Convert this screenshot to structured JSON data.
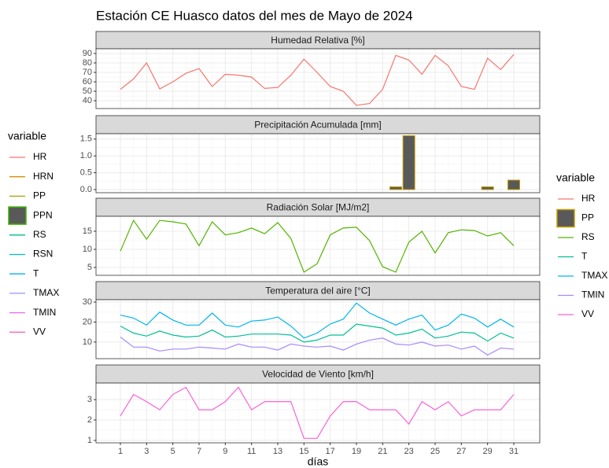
{
  "title": "Estación CE Huasco datos del mes de Mayo de 2024",
  "x_label": "días",
  "legends": [
    {
      "title": "variable",
      "entries": [
        {
          "name": "HR",
          "color": "#F8766D"
        },
        {
          "name": "HRN",
          "color": "#D89000"
        },
        {
          "name": "PP",
          "color": "#A3A500"
        },
        {
          "name": "PPN",
          "color": "#39B600",
          "key": "box"
        },
        {
          "name": "RS",
          "color": "#00BF7D"
        },
        {
          "name": "RSN",
          "color": "#00BFC4"
        },
        {
          "name": "T",
          "color": "#00B0F6"
        },
        {
          "name": "TMAX",
          "color": "#9590FF"
        },
        {
          "name": "TMIN",
          "color": "#E76BF3"
        },
        {
          "name": "VV",
          "color": "#FF62BC"
        }
      ]
    },
    {
      "title": "variable",
      "entries": [
        {
          "name": "HR",
          "color": "#F8766D"
        },
        {
          "name": "PP",
          "color": "#C49A00",
          "key": "box"
        },
        {
          "name": "RS",
          "color": "#53B400"
        },
        {
          "name": "T",
          "color": "#00C094"
        },
        {
          "name": "TMAX",
          "color": "#00B6EB"
        },
        {
          "name": "TMIN",
          "color": "#A58AFF"
        },
        {
          "name": "VV",
          "color": "#FB61D7"
        }
      ]
    }
  ],
  "chart_data": [
    {
      "type": "line",
      "title": "Humedad Relativa [%]",
      "x": [
        1,
        2,
        3,
        4,
        5,
        6,
        7,
        8,
        9,
        10,
        11,
        12,
        13,
        14,
        15,
        16,
        17,
        18,
        19,
        20,
        21,
        22,
        23,
        24,
        25,
        26,
        27,
        28,
        29,
        30,
        31
      ],
      "xlim": [
        -0.86,
        32.98
      ],
      "xticks": [
        1,
        3,
        5,
        7,
        9,
        11,
        13,
        15,
        17,
        19,
        21,
        23,
        25,
        27,
        29,
        31
      ],
      "ylim": [
        31.7,
        95
      ],
      "yticks": [
        40,
        50,
        60,
        70,
        80,
        90
      ],
      "series": [
        {
          "name": "HR",
          "color": "#F8766D",
          "values": [
            52,
            63,
            80,
            52.5,
            60,
            69,
            74,
            55,
            68,
            67,
            65,
            53,
            54,
            67,
            84,
            70,
            55,
            50,
            35,
            37,
            52,
            88,
            83,
            68,
            88,
            77,
            55,
            52,
            85,
            73,
            89
          ]
        }
      ]
    },
    {
      "type": "bar",
      "title": "Precipitación Acumulada [mm]",
      "x": [
        1,
        2,
        3,
        4,
        5,
        6,
        7,
        8,
        9,
        10,
        11,
        12,
        13,
        14,
        15,
        16,
        17,
        18,
        19,
        20,
        21,
        22,
        23,
        24,
        25,
        26,
        27,
        28,
        29,
        30,
        31
      ],
      "xlim": [
        -0.86,
        32.98
      ],
      "xticks": [
        1,
        3,
        5,
        7,
        9,
        11,
        13,
        15,
        17,
        19,
        21,
        23,
        25,
        27,
        29,
        31
      ],
      "ylim": [
        -0.094,
        1.66
      ],
      "yticks": [
        {
          "value": 0,
          "label": "0.0"
        },
        {
          "value": 0.5,
          "label": "0.5"
        },
        {
          "value": 1,
          "label": "1.0"
        },
        {
          "value": 1.5,
          "label": "1.5"
        }
      ],
      "series": [
        {
          "name": "PP",
          "color": "#595959",
          "border": "#C49A00",
          "values": [
            0,
            0,
            0,
            0,
            0,
            0,
            0,
            0,
            0,
            0,
            0,
            0,
            0,
            0,
            0,
            0,
            0,
            0,
            0,
            0,
            0,
            0.08,
            1.6,
            0,
            0,
            0,
            0,
            0,
            0.08,
            0,
            0.28
          ]
        }
      ]
    },
    {
      "type": "line",
      "title": "Radiación Solar [MJ/m2]",
      "x": [
        1,
        2,
        3,
        4,
        5,
        6,
        7,
        8,
        9,
        10,
        11,
        12,
        13,
        14,
        15,
        16,
        17,
        18,
        19,
        20,
        21,
        22,
        23,
        24,
        25,
        26,
        27,
        28,
        29,
        30,
        31
      ],
      "xlim": [
        -0.86,
        32.98
      ],
      "xticks": [
        1,
        3,
        5,
        7,
        9,
        11,
        13,
        15,
        17,
        19,
        21,
        23,
        25,
        27,
        29,
        31
      ],
      "ylim": [
        2.83,
        19.13
      ],
      "yticks": [
        5,
        10,
        15
      ],
      "series": [
        {
          "name": "RS",
          "color": "#53B400",
          "values": [
            9.5,
            18,
            12.8,
            18,
            17.6,
            17,
            11,
            17.6,
            14,
            14.6,
            15.9,
            14.3,
            17.4,
            13,
            3.7,
            6,
            14,
            15.9,
            16.1,
            12.4,
            5.2,
            3.7,
            12,
            15,
            9,
            14.6,
            15.4,
            15.2,
            13.7,
            14.6,
            11
          ]
        }
      ]
    },
    {
      "type": "line",
      "title": "Temperatura del aire [°C]",
      "x": [
        1,
        2,
        3,
        4,
        5,
        6,
        7,
        8,
        9,
        10,
        11,
        12,
        13,
        14,
        15,
        16,
        17,
        18,
        19,
        20,
        21,
        22,
        23,
        24,
        25,
        26,
        27,
        28,
        29,
        30,
        31
      ],
      "xlim": [
        -0.86,
        32.98
      ],
      "xticks": [
        1,
        3,
        5,
        7,
        9,
        11,
        13,
        15,
        17,
        19,
        21,
        23,
        25,
        27,
        29,
        31
      ],
      "ylim": [
        1.7,
        31.2
      ],
      "yticks": [
        10,
        20,
        30
      ],
      "series": [
        {
          "name": "TMAX",
          "color": "#00B6EB",
          "values": [
            23.5,
            22,
            18.5,
            25,
            21,
            18.5,
            18.5,
            24.5,
            18.5,
            17.5,
            20.5,
            21,
            22.5,
            18,
            12,
            14.5,
            19,
            21.5,
            29.5,
            24.5,
            21.5,
            18.5,
            21.5,
            23.5,
            16,
            18.5,
            24,
            22,
            17.5,
            21.5,
            17.5
          ]
        },
        {
          "name": "T",
          "color": "#00C094",
          "values": [
            18,
            14.5,
            13,
            15.5,
            13.5,
            12.5,
            13,
            16,
            12.5,
            13,
            14,
            14,
            14,
            13.5,
            10,
            11,
            13.5,
            13.5,
            19,
            18,
            17,
            13.5,
            14.5,
            16.5,
            12,
            13,
            15,
            14.5,
            10.5,
            14.5,
            12
          ]
        },
        {
          "name": "TMIN",
          "color": "#A58AFF",
          "values": [
            12.5,
            7.5,
            7.5,
            5.5,
            6.5,
            6.5,
            7.5,
            7,
            6.5,
            9,
            7.5,
            7.5,
            6,
            9,
            8,
            7.5,
            8,
            6,
            9,
            11,
            12,
            9,
            8.5,
            10,
            8,
            8.5,
            6.5,
            8,
            3.5,
            7,
            6.5
          ]
        }
      ]
    },
    {
      "type": "line",
      "title": "Velocidad de Viento [km/h]",
      "x": [
        1,
        2,
        3,
        4,
        5,
        6,
        7,
        8,
        9,
        10,
        11,
        12,
        13,
        14,
        15,
        16,
        17,
        18,
        19,
        20,
        21,
        22,
        23,
        24,
        25,
        26,
        27,
        28,
        29,
        30,
        31
      ],
      "xlim": [
        -0.86,
        32.98
      ],
      "xticks": [
        1,
        3,
        5,
        7,
        9,
        11,
        13,
        15,
        17,
        19,
        21,
        23,
        25,
        27,
        29,
        31
      ],
      "ylim": [
        0.88,
        3.81
      ],
      "yticks": [
        1,
        2,
        3
      ],
      "series": [
        {
          "name": "VV",
          "color": "#FB61D7",
          "values": [
            2.2,
            3.25,
            2.9,
            2.5,
            3.25,
            3.6,
            2.5,
            2.5,
            2.9,
            3.6,
            2.5,
            2.9,
            2.9,
            2.9,
            1.1,
            1.1,
            2.2,
            2.9,
            2.9,
            2.5,
            2.5,
            2.5,
            1.8,
            2.9,
            2.5,
            2.9,
            2.2,
            2.5,
            2.5,
            2.5,
            3.25
          ]
        }
      ]
    }
  ]
}
